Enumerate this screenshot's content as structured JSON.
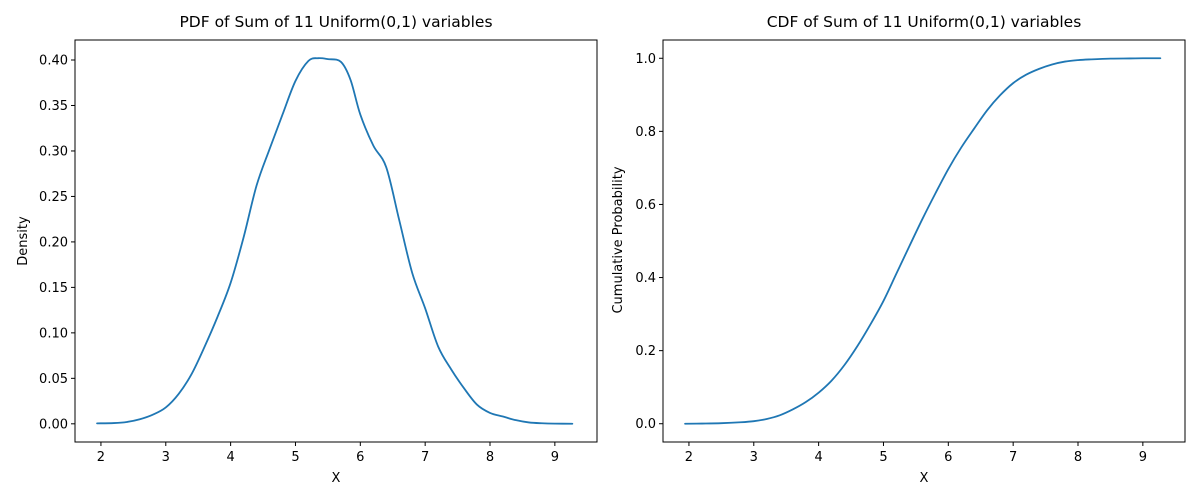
{
  "colors": {
    "series": "#1f77b4",
    "axes": "#000000",
    "background": "#ffffff"
  },
  "chart_data": [
    {
      "id": "pdf",
      "type": "line",
      "title": "PDF of Sum of 11 Uniform(0,1) variables",
      "xlabel": "X",
      "ylabel": "Density",
      "xlim": [
        1.6,
        9.65
      ],
      "ylim": [
        -0.02,
        0.422
      ],
      "xticks": [
        2,
        3,
        4,
        5,
        6,
        7,
        8,
        9
      ],
      "yticks": [
        0.0,
        0.05,
        0.1,
        0.15,
        0.2,
        0.25,
        0.3,
        0.35,
        0.4
      ],
      "xtick_labels": [
        "2",
        "3",
        "4",
        "5",
        "6",
        "7",
        "8",
        "9"
      ],
      "ytick_labels": [
        "0.00",
        "0.05",
        "0.10",
        "0.15",
        "0.20",
        "0.25",
        "0.30",
        "0.35",
        "0.40"
      ],
      "grid": false,
      "series": [
        {
          "x": [
            1.94,
            2.2,
            2.4,
            2.6,
            2.8,
            3.0,
            3.2,
            3.4,
            3.6,
            3.8,
            4.0,
            4.2,
            4.4,
            4.6,
            4.8,
            5.0,
            5.2,
            5.35,
            5.5,
            5.7,
            5.85,
            6.0,
            6.2,
            6.4,
            6.6,
            6.8,
            7.0,
            7.2,
            7.4,
            7.6,
            7.8,
            8.0,
            8.2,
            8.4,
            8.6,
            8.8,
            9.0,
            9.27
          ],
          "y": [
            0.0005,
            0.0008,
            0.002,
            0.005,
            0.01,
            0.018,
            0.033,
            0.055,
            0.085,
            0.118,
            0.155,
            0.205,
            0.262,
            0.302,
            0.34,
            0.377,
            0.399,
            0.402,
            0.401,
            0.398,
            0.378,
            0.34,
            0.306,
            0.282,
            0.224,
            0.166,
            0.127,
            0.085,
            0.06,
            0.039,
            0.021,
            0.012,
            0.008,
            0.004,
            0.0015,
            0.0006,
            0.0002,
            0.0001
          ]
        }
      ]
    },
    {
      "id": "cdf",
      "type": "line",
      "title": "CDF of Sum of 11 Uniform(0,1) variables",
      "xlabel": "X",
      "ylabel": "Cumulative Probability",
      "xlim": [
        1.6,
        9.65
      ],
      "ylim": [
        -0.05,
        1.05
      ],
      "xticks": [
        2,
        3,
        4,
        5,
        6,
        7,
        8,
        9
      ],
      "yticks": [
        0.0,
        0.2,
        0.4,
        0.6,
        0.8,
        1.0
      ],
      "xtick_labels": [
        "2",
        "3",
        "4",
        "5",
        "6",
        "7",
        "8",
        "9"
      ],
      "ytick_labels": [
        "0.0",
        "0.2",
        "0.4",
        "0.6",
        "0.8",
        "1.0"
      ],
      "grid": false,
      "series": [
        {
          "x": [
            1.94,
            2.2,
            2.5,
            2.8,
            3.0,
            3.2,
            3.4,
            3.6,
            3.8,
            4.0,
            4.2,
            4.4,
            4.6,
            4.8,
            5.0,
            5.2,
            5.4,
            5.6,
            5.8,
            6.0,
            6.2,
            6.4,
            6.6,
            6.8,
            7.0,
            7.2,
            7.4,
            7.6,
            7.8,
            8.0,
            8.2,
            8.5,
            8.8,
            9.0,
            9.27
          ],
          "y": [
            0.0,
            0.0005,
            0.0015,
            0.004,
            0.007,
            0.013,
            0.023,
            0.039,
            0.059,
            0.085,
            0.118,
            0.161,
            0.213,
            0.272,
            0.336,
            0.411,
            0.486,
            0.56,
            0.63,
            0.697,
            0.756,
            0.808,
            0.858,
            0.899,
            0.932,
            0.955,
            0.971,
            0.983,
            0.991,
            0.995,
            0.997,
            0.999,
            0.9995,
            1.0,
            1.0
          ]
        }
      ]
    }
  ]
}
